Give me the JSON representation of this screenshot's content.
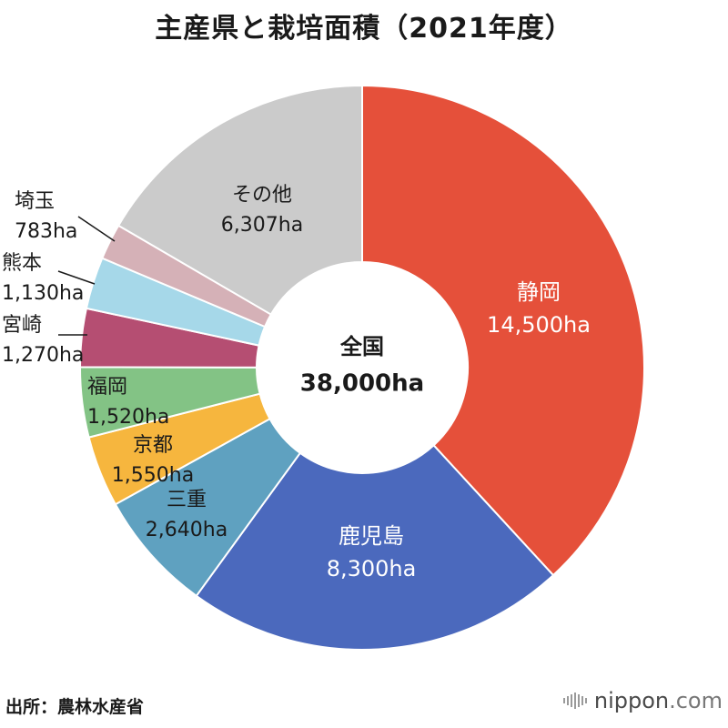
{
  "chart_data": {
    "type": "pie",
    "subtype": "donut",
    "title": "主産県と栽培面積（2021年度）",
    "unit": "ha",
    "center_label": "全国",
    "center_value": "38,000ha",
    "slices": [
      {
        "name": "静岡",
        "value": 14500,
        "label": "14,500ha",
        "color": "#e5503a"
      },
      {
        "name": "鹿児島",
        "value": 8300,
        "label": "8,300ha",
        "color": "#4b69bd"
      },
      {
        "name": "三重",
        "value": 2640,
        "label": "2,640ha",
        "color": "#5fa1c0"
      },
      {
        "name": "京都",
        "value": 1550,
        "label": "1,550ha",
        "color": "#f6b63e"
      },
      {
        "name": "福岡",
        "value": 1520,
        "label": "1,520ha",
        "color": "#83c385"
      },
      {
        "name": "宮崎",
        "value": 1270,
        "label": "1,270ha",
        "color": "#b54e72"
      },
      {
        "name": "熊本",
        "value": 1130,
        "label": "1,130ha",
        "color": "#a6d8e9"
      },
      {
        "name": "埼玉",
        "value": 783,
        "label": "783ha",
        "color": "#d5b1b7"
      },
      {
        "name": "その他",
        "value": 6307,
        "label": "6,307ha",
        "color": "#cbcbcb"
      }
    ]
  },
  "source": "出所：農林水産省",
  "credit": {
    "brand": "nippon",
    "domain": ".com"
  }
}
